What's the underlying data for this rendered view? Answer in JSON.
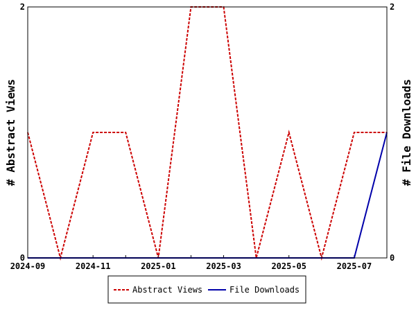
{
  "chart_data": {
    "type": "line",
    "x": [
      "2024-09",
      "2024-10",
      "2024-11",
      "2024-12",
      "2025-01",
      "2025-02",
      "2025-03",
      "2025-04",
      "2025-05",
      "2025-06",
      "2025-07",
      "2025-08"
    ],
    "x_tick_labels": [
      "2024-09",
      "2024-11",
      "2025-01",
      "2025-03",
      "2025-05",
      "2025-07"
    ],
    "series": [
      {
        "name": "Abstract Views",
        "axis": "left",
        "color": "#cc0000",
        "dash": "dashed",
        "values": [
          1,
          0,
          1,
          1,
          0,
          2,
          2,
          0,
          1,
          0,
          1,
          1
        ]
      },
      {
        "name": "File Downloads",
        "axis": "right",
        "color": "#0000aa",
        "dash": "solid",
        "values": [
          0,
          0,
          0,
          0,
          0,
          0,
          0,
          0,
          0,
          0,
          0,
          1
        ]
      }
    ],
    "ylabel_left": "# Abstract Views",
    "ylabel_right": "# File Downloads",
    "ylim_left": [
      0,
      2
    ],
    "ylim_right": [
      0,
      2
    ],
    "y_ticks_left": [
      "0",
      "2"
    ],
    "y_ticks_right": [
      "0",
      "2"
    ],
    "grid": false,
    "legend_position": "bottom-center"
  }
}
